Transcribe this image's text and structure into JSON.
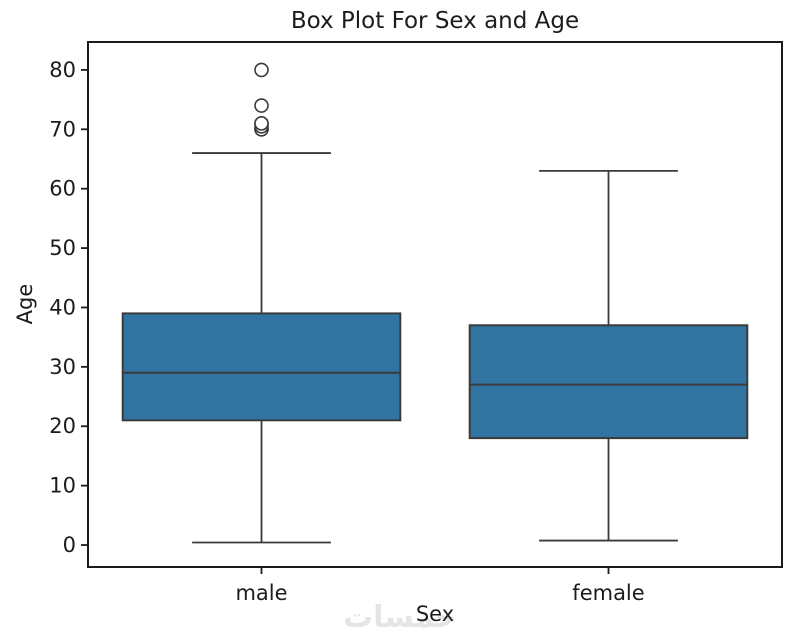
{
  "watermark": {
    "text": "خمسات"
  },
  "chart_data": {
    "type": "boxplot",
    "title": "Box Plot For Sex and Age",
    "xlabel": "Sex",
    "ylabel": "Age",
    "categories": [
      "male",
      "female"
    ],
    "ylim": [
      -3.7,
      84.7
    ],
    "yticks": [
      0,
      10,
      20,
      30,
      40,
      50,
      60,
      70,
      80
    ],
    "grid": false,
    "series": [
      {
        "category": "male",
        "whisker_low": 0.42,
        "q1": 21,
        "median": 29,
        "q3": 39,
        "whisker_high": 66,
        "outliers": [
          70,
          70,
          70.5,
          71,
          71,
          74,
          80
        ]
      },
      {
        "category": "female",
        "whisker_low": 0.75,
        "q1": 18,
        "median": 27,
        "q3": 37,
        "whisker_high": 63,
        "outliers": []
      }
    ],
    "colors": {
      "box_fill": "#3274a1",
      "line": "#3a3a3a",
      "spine": "#1a1a1a",
      "text": "#1c1c1c",
      "watermark": "#e5e5e5"
    }
  }
}
